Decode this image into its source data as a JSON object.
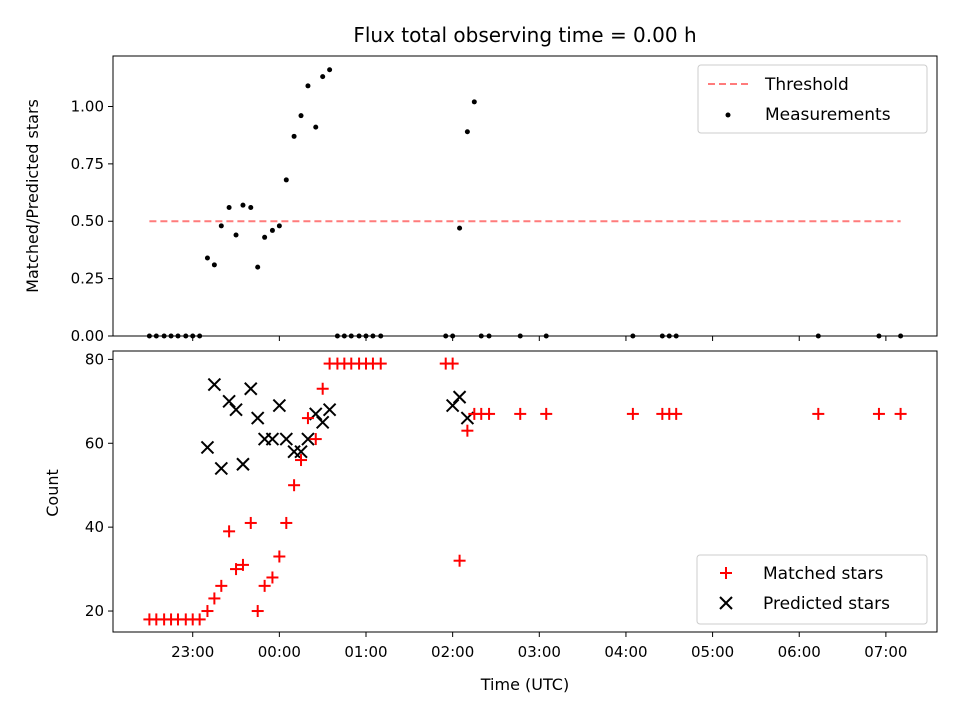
{
  "chart_data": [
    {
      "type": "scatter",
      "title": "Flux total observing time = 0.00 h",
      "xlabel": "",
      "ylabel": "Matched/Predicted stars",
      "ylim": [
        0,
        1.22
      ],
      "yticks": [
        "0.00",
        "0.25",
        "0.50",
        "0.75",
        "1.00"
      ],
      "x_range_hours": [
        -1.92,
        7.59
      ],
      "legend_position": "top-right",
      "threshold": {
        "name": "Threshold",
        "value": 0.5,
        "x_start": -1.5,
        "x_end": 7.17,
        "color": "#ff7b7b"
      },
      "series": [
        {
          "name": "Measurements",
          "color": "#000000",
          "marker": "dot",
          "x": [
            -1.5,
            -1.42,
            -1.33,
            -1.25,
            -1.17,
            -1.08,
            -1.0,
            -0.92,
            -0.83,
            -0.75,
            -0.67,
            -0.58,
            -0.5,
            -0.42,
            -0.33,
            -0.25,
            -0.17,
            -0.08,
            0.0,
            0.08,
            0.17,
            0.25,
            0.33,
            0.42,
            0.5,
            0.58,
            0.67,
            0.75,
            0.83,
            0.92,
            1.0,
            1.08,
            1.17,
            1.92,
            2.0,
            2.08,
            2.17,
            2.25,
            2.33,
            2.42,
            2.78,
            3.08,
            4.08,
            4.42,
            4.5,
            4.58,
            6.22,
            6.92,
            7.17
          ],
          "y": [
            0,
            0,
            0,
            0,
            0,
            0,
            0,
            0,
            0.34,
            0.31,
            0.48,
            0.56,
            0.44,
            0.57,
            0.56,
            0.3,
            0.43,
            0.46,
            0.48,
            0.68,
            0.87,
            0.96,
            1.09,
            0.91,
            1.13,
            1.16,
            0,
            0,
            0,
            0,
            0,
            0,
            0,
            0,
            0,
            0.47,
            0.89,
            1.02,
            0,
            0,
            0,
            0,
            0,
            0,
            0,
            0,
            0,
            0,
            0
          ]
        }
      ]
    },
    {
      "type": "scatter",
      "title": "",
      "xlabel": "Time (UTC)",
      "ylabel": "Count",
      "ylim": [
        15,
        82
      ],
      "yticks": [
        "20",
        "40",
        "60",
        "80"
      ],
      "xticks": [
        "23:00",
        "00:00",
        "01:00",
        "02:00",
        "03:00",
        "04:00",
        "05:00",
        "06:00",
        "07:00"
      ],
      "x_range_hours": [
        -1.92,
        7.59
      ],
      "legend_position": "bottom-right",
      "series": [
        {
          "name": "Matched stars",
          "color": "#ff0000",
          "marker": "plus",
          "x": [
            -1.5,
            -1.42,
            -1.33,
            -1.25,
            -1.17,
            -1.08,
            -1.0,
            -0.92,
            -0.83,
            -0.75,
            -0.67,
            -0.58,
            -0.5,
            -0.42,
            -0.33,
            -0.25,
            -0.17,
            -0.08,
            0.0,
            0.08,
            0.17,
            0.25,
            0.33,
            0.42,
            0.5,
            0.58,
            0.67,
            0.75,
            0.83,
            0.92,
            1.0,
            1.08,
            1.17,
            1.92,
            2.0,
            2.08,
            2.17,
            2.25,
            2.33,
            2.42,
            2.78,
            3.08,
            4.08,
            4.42,
            4.5,
            4.58,
            6.22,
            6.92,
            7.17
          ],
          "y": [
            18,
            18,
            18,
            18,
            18,
            18,
            18,
            18,
            20,
            23,
            26,
            39,
            30,
            31,
            41,
            20,
            26,
            28,
            33,
            41,
            50,
            56,
            66,
            61,
            73,
            79,
            79,
            79,
            79,
            79,
            79,
            79,
            79,
            79,
            79,
            32,
            63,
            67,
            67,
            67,
            67,
            67,
            67,
            67,
            67,
            67,
            67,
            67,
            67
          ]
        },
        {
          "name": "Predicted stars",
          "color": "#000000",
          "marker": "cross",
          "x": [
            -0.83,
            -0.75,
            -0.67,
            -0.58,
            -0.5,
            -0.42,
            -0.33,
            -0.25,
            -0.17,
            -0.08,
            0.0,
            0.08,
            0.17,
            0.25,
            0.33,
            0.42,
            0.5,
            0.58,
            2.0,
            2.08,
            2.17
          ],
          "y": [
            59,
            74,
            54,
            70,
            68,
            55,
            73,
            66,
            61,
            61,
            69,
            61,
            58,
            58,
            61,
            67,
            65,
            68,
            69,
            71,
            66
          ]
        }
      ]
    }
  ]
}
